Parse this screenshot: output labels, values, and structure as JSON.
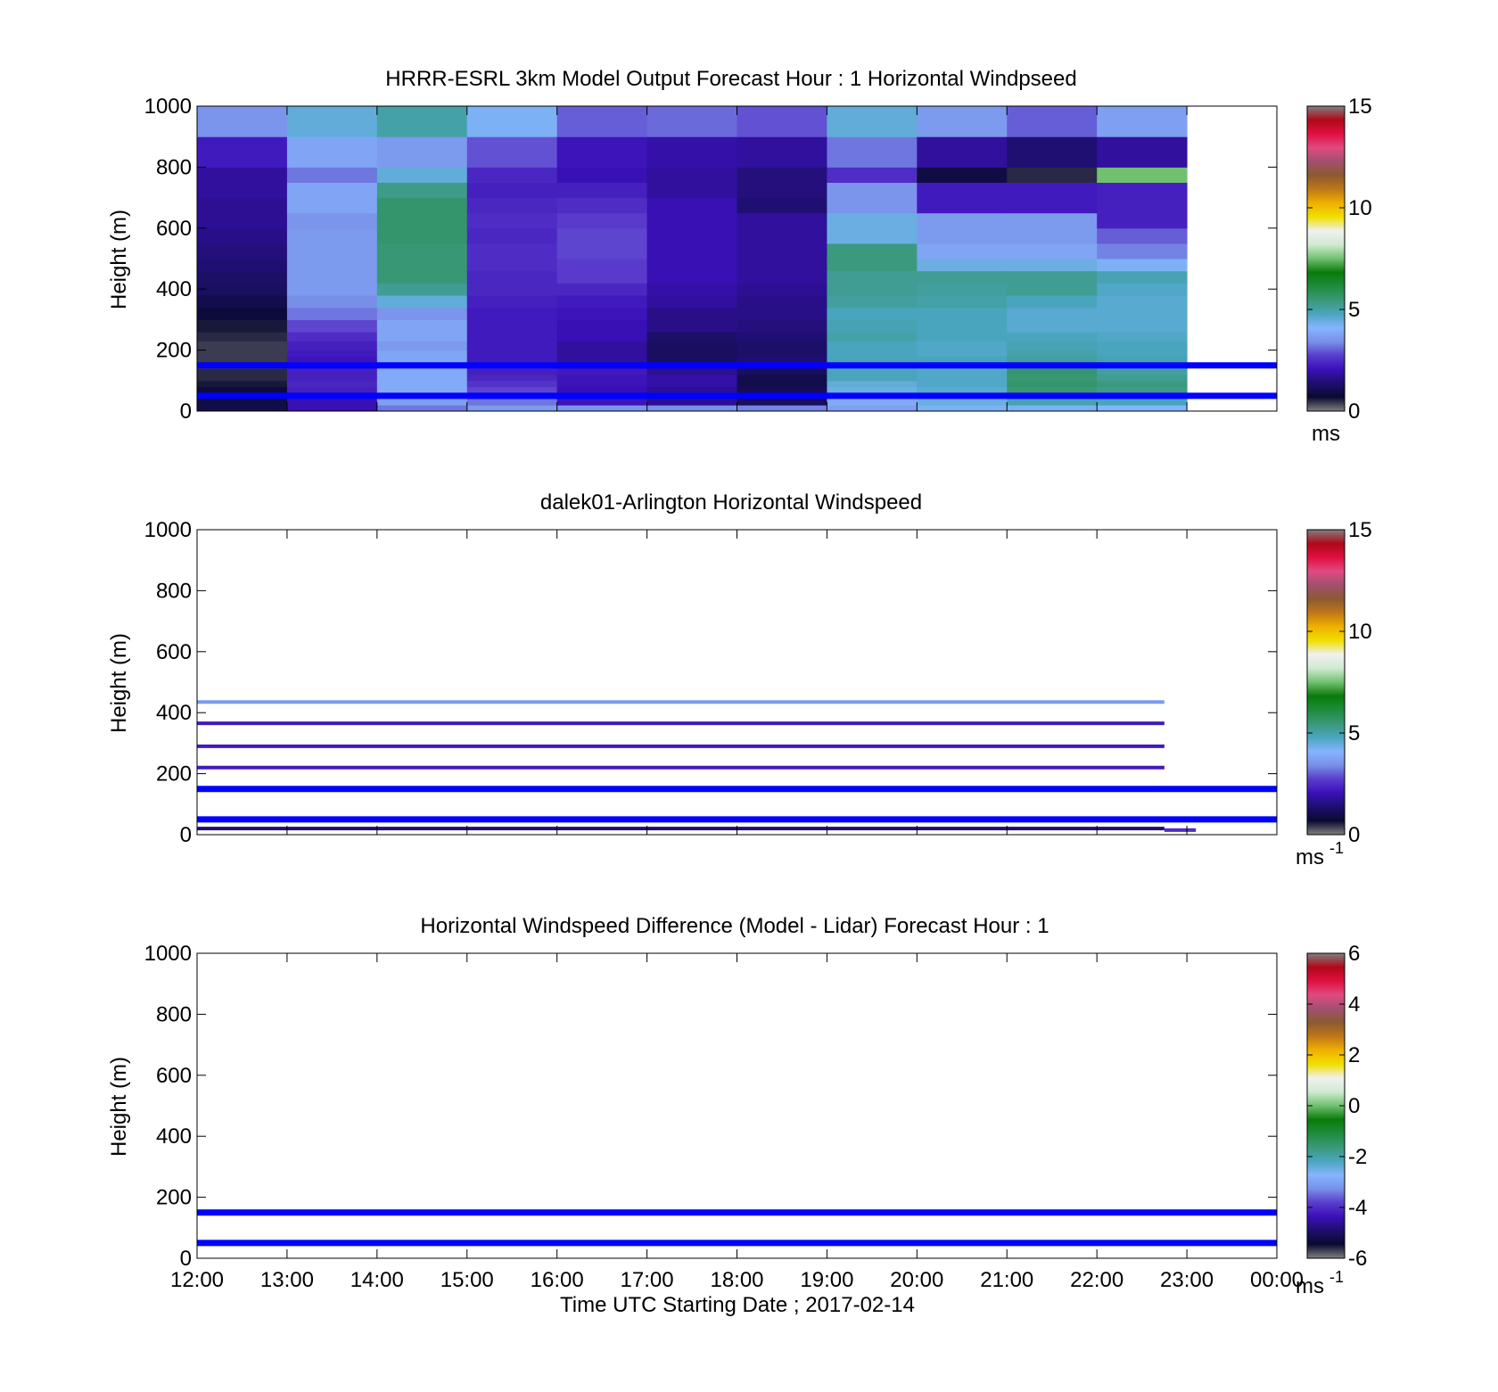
{
  "figure": {
    "xlabel": "Time UTC  Starting Date ; 2017-02-14",
    "time_ticks": [
      "12:00",
      "13:00",
      "14:00",
      "15:00",
      "16:00",
      "17:00",
      "18:00",
      "19:00",
      "20:00",
      "21:00",
      "22:00",
      "23:00",
      "00:00"
    ],
    "height_ticks": [
      "0",
      "200",
      "400",
      "600",
      "800",
      "1000"
    ]
  },
  "chart_data": [
    {
      "type": "heatmap",
      "title": "HRRR-ESRL 3km Model Output   Forecast Hour : 1 Horizontal Windpseed",
      "xlabel": "",
      "ylabel": "Height (m)",
      "x_unit": "hours UTC from 12:00",
      "xlim": [
        0,
        12
      ],
      "ylim": [
        0,
        1000
      ],
      "clim": [
        0,
        15
      ],
      "colorbar_ticks": [
        "0",
        "5",
        "10",
        "15"
      ],
      "colorbar_label": "ms",
      "colorbar_superscript": "",
      "grid": false,
      "level_bounds": [
        0,
        20,
        40,
        60,
        80,
        100,
        120,
        140,
        160,
        180,
        200,
        230,
        260,
        300,
        340,
        380,
        420,
        460,
        500,
        550,
        600,
        650,
        700,
        750,
        800,
        900,
        1000
      ],
      "columns": [
        {
          "x": [
            0,
            1
          ],
          "speeds": [
            1.0,
            0.9,
            0.7,
            0.8,
            0.6,
            0.5,
            0.5,
            0.4,
            0.4,
            0.4,
            0.4,
            0.5,
            0.6,
            0.8,
            1.0,
            1.2,
            1.3,
            1.4,
            1.5,
            1.6,
            1.7,
            1.7,
            1.8,
            1.8,
            2.2,
            3.5
          ]
        },
        {
          "x": [
            1,
            2
          ],
          "speeds": [
            2.0,
            2.0,
            2.2,
            2.3,
            2.4,
            2.3,
            2.3,
            2.2,
            2.1,
            2.2,
            2.3,
            2.5,
            2.8,
            3.2,
            3.4,
            3.6,
            3.6,
            3.6,
            3.6,
            3.6,
            3.5,
            3.8,
            3.8,
            3.2,
            3.8,
            4.5
          ]
        },
        {
          "x": [
            2,
            3
          ],
          "speeds": [
            3.2,
            3.7,
            3.9,
            3.9,
            3.9,
            3.9,
            3.9,
            3.8,
            3.8,
            3.8,
            3.6,
            3.8,
            3.8,
            3.5,
            4.5,
            5.2,
            5.5,
            5.5,
            5.5,
            5.6,
            5.6,
            5.6,
            5.3,
            4.5,
            3.6,
            5.0
          ]
        },
        {
          "x": [
            3,
            4
          ],
          "speeds": [
            3.6,
            3.2,
            3.0,
            2.8,
            2.6,
            2.4,
            2.3,
            2.2,
            2.2,
            2.2,
            2.2,
            2.2,
            2.2,
            2.2,
            2.3,
            2.4,
            2.4,
            2.5,
            2.5,
            2.4,
            2.5,
            2.4,
            2.3,
            2.4,
            2.9,
            4.2
          ]
        },
        {
          "x": [
            4,
            5
          ],
          "speeds": [
            3.5,
            2.1,
            2.0,
            2.0,
            2.1,
            2.1,
            2.2,
            1.9,
            1.8,
            1.8,
            1.8,
            2.0,
            2.0,
            2.1,
            2.2,
            2.4,
            2.7,
            2.7,
            2.8,
            2.8,
            2.7,
            2.5,
            2.3,
            2.0,
            2.1,
            3.0
          ]
        },
        {
          "x": [
            5,
            6
          ],
          "speeds": [
            3.4,
            1.7,
            1.6,
            1.7,
            1.9,
            1.9,
            1.7,
            1.5,
            1.2,
            1.2,
            1.2,
            1.3,
            1.6,
            1.6,
            1.8,
            1.9,
            2.0,
            2.0,
            2.0,
            2.0,
            2.0,
            2.0,
            1.8,
            1.8,
            1.9,
            3.1
          ]
        },
        {
          "x": [
            6,
            7
          ],
          "speeds": [
            3.3,
            1.2,
            1.1,
            1.1,
            1.0,
            1.0,
            1.2,
            1.3,
            1.4,
            1.3,
            1.3,
            1.4,
            1.5,
            1.6,
            1.6,
            1.7,
            1.8,
            1.8,
            1.8,
            1.8,
            1.8,
            1.4,
            1.5,
            1.5,
            1.8,
            2.9
          ]
        },
        {
          "x": [
            7,
            8
          ],
          "speeds": [
            3.7,
            3.9,
            4.2,
            4.4,
            4.5,
            4.8,
            4.8,
            4.8,
            4.8,
            4.8,
            4.8,
            5.0,
            4.9,
            4.8,
            5.1,
            5.2,
            5.2,
            5.4,
            5.4,
            4.4,
            4.4,
            3.5,
            3.5,
            2.5,
            3.2,
            4.5
          ]
        },
        {
          "x": [
            8,
            9
          ],
          "speeds": [
            4.2,
            4.4,
            4.5,
            4.6,
            4.7,
            4.7,
            4.7,
            4.7,
            4.8,
            4.7,
            4.7,
            4.8,
            4.8,
            4.8,
            5.0,
            5.1,
            5.2,
            4.4,
            3.8,
            3.6,
            3.6,
            2.2,
            2.2,
            0.9,
            1.8,
            3.6
          ]
        },
        {
          "x": [
            9,
            10
          ],
          "speeds": [
            4.2,
            4.9,
            5.4,
            5.5,
            5.6,
            5.5,
            5.6,
            5.5,
            5.1,
            5.0,
            4.9,
            4.8,
            4.6,
            4.6,
            4.8,
            5.2,
            5.2,
            4.4,
            3.8,
            3.6,
            3.6,
            2.2,
            2.2,
            0.5,
            1.4,
            3.0
          ]
        },
        {
          "x": [
            10,
            11
          ],
          "speeds": [
            4.1,
            4.8,
            5.0,
            5.3,
            5.4,
            5.2,
            5.1,
            5.0,
            4.9,
            4.8,
            4.8,
            4.7,
            4.6,
            4.6,
            4.6,
            4.7,
            4.9,
            4.2,
            3.3,
            3.0,
            2.3,
            2.3,
            2.3,
            7.5,
            1.8,
            3.7
          ]
        }
      ],
      "reference_lines_m": [
        50,
        150
      ]
    },
    {
      "type": "heatmap",
      "title": "dalek01-Arlington  Horizontal Windspeed",
      "xlabel": "",
      "ylabel": "Height (m)",
      "x_unit": "hours UTC from 12:00",
      "xlim": [
        0,
        12
      ],
      "ylim": [
        0,
        1000
      ],
      "clim": [
        0,
        15
      ],
      "colorbar_ticks": [
        "0",
        "5",
        "10",
        "15"
      ],
      "colorbar_label": "ms",
      "colorbar_superscript": "-1",
      "grid": false,
      "rows": [
        {
          "height": 20,
          "x_start": 0,
          "x_end": 10.75,
          "speed": 1.4
        },
        {
          "height": 15,
          "x_start": 10.75,
          "x_end": 11.1,
          "speed": 2.5
        },
        {
          "height": 220,
          "x_start": 0,
          "x_end": 10.75,
          "speed": 2.2
        },
        {
          "height": 290,
          "x_start": 0,
          "x_end": 10.75,
          "speed": 2.2
        },
        {
          "height": 365,
          "x_start": 0,
          "x_end": 10.75,
          "speed": 2.2
        },
        {
          "height": 435,
          "x_start": 0,
          "x_end": 10.75,
          "speed": 3.6
        }
      ],
      "reference_lines_m": [
        50,
        150
      ]
    },
    {
      "type": "heatmap",
      "title": "Horizontal Windspeed Difference (Model - Lidar) Forecast Hour : 1",
      "xlabel": "Time UTC  Starting Date ; 2017-02-14",
      "ylabel": "Height (m)",
      "x_unit": "hours UTC from 12:00",
      "xlim": [
        0,
        12
      ],
      "ylim": [
        0,
        1000
      ],
      "clim": [
        -6,
        6
      ],
      "colorbar_ticks": [
        "-6",
        "-4",
        "-2",
        "0",
        "2",
        "4",
        "6"
      ],
      "colorbar_label": "ms",
      "colorbar_superscript": "-1",
      "grid": false,
      "rows": [],
      "reference_lines_m": [
        50,
        150
      ]
    }
  ],
  "colors": {
    "reference_line": "#0000ff",
    "colormap": [
      "#808080",
      "#0a0a30",
      "#1e0f6e",
      "#3a10b8",
      "#5a3ccc",
      "#7890e8",
      "#86b4ff",
      "#4aa6c0",
      "#3a9878",
      "#1e8c3e",
      "#0a7a0a",
      "#70c070",
      "#d0ead0",
      "#f0f0f0",
      "#f0e000",
      "#f0b000",
      "#c07818",
      "#8c5a30",
      "#a05070",
      "#e04a80",
      "#e01040",
      "#b00818",
      "#808080"
    ]
  }
}
